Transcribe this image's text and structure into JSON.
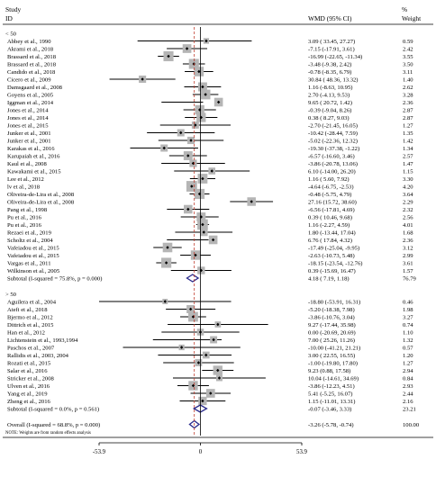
{
  "chart_data": {
    "type": "forest",
    "title": "",
    "xlabel": "",
    "ylabel": "",
    "xlim": [
      -53.9,
      53.9
    ],
    "ticks": [
      "-53.9",
      "0",
      "53.9"
    ],
    "tick_values": [
      -53.9,
      0,
      53.9
    ],
    "header": {
      "study_line1": "Study",
      "study_line2": "ID",
      "effect": "WMD (95% CI)",
      "weight_line1": "%",
      "weight_line2": "Weight"
    },
    "groups": [
      {
        "label": "< 50",
        "studies": [
          {
            "study": "Abbey et al., 1990",
            "wmd": 3.09,
            "lo": -33.45,
            "hi": 27.27,
            "ci": "3.09 ( 33.45, 27.27)",
            "weight": "0.59"
          },
          {
            "study": "Akrami et al., 2018",
            "wmd": -7.15,
            "lo": -17.91,
            "hi": 3.61,
            "ci": "-7.15 (-17.91, 3.61)",
            "weight": "2.42"
          },
          {
            "study": "Brassard et al., 2018",
            "wmd": -16.99,
            "lo": -22.65,
            "hi": -11.34,
            "ci": "-16.99 (-22.65, -11.34)",
            "weight": "3.55"
          },
          {
            "study": "Brassard et al., 2018",
            "wmd": -3.48,
            "lo": -9.38,
            "hi": 2.42,
            "ci": "-3.48 (-9.38, 2.42)",
            "weight": "3.50"
          },
          {
            "study": "Candido et al., 2018",
            "wmd": -0.78,
            "lo": -8.35,
            "hi": 6.79,
            "ci": "-0.78 (-8.35, 6.79)",
            "weight": "3.11"
          },
          {
            "study": "Cicero et al., 2009",
            "wmd": -30.84,
            "lo": -48.36,
            "hi": -13.32,
            "ci": "30.84 ( 48.36, 13.32)",
            "weight": "1.40"
          },
          {
            "study": "Damsgaard et al., 2008",
            "wmd": 1.16,
            "lo": -8.63,
            "hi": 10.95,
            "ci": "1.16 (-8.63, 10.95)",
            "weight": "2.62"
          },
          {
            "study": "Goyens et al., 2005",
            "wmd": 2.7,
            "lo": -4.13,
            "hi": 9.53,
            "ci": "2.70 (-4.13, 9.53)",
            "weight": "3.28"
          },
          {
            "study": "Iggman et al., 2014",
            "wmd": 9.65,
            "lo": -20.72,
            "hi": 1.42,
            "ci": "9.65 ( 20.72, 1.42)",
            "weight": "2.36"
          },
          {
            "study": "Jones et al., 2014",
            "wmd": -0.39,
            "lo": -9.04,
            "hi": 8.26,
            "ci": "-0.39 (-9.04, 8.26)",
            "weight": "2.87"
          },
          {
            "study": "Jones et al., 2014",
            "wmd": 0.38,
            "lo": -8.27,
            "hi": 9.03,
            "ci": "0.38 ( 8.27, 9.03)",
            "weight": "2.87"
          },
          {
            "study": "Jones et al., 2015",
            "wmd": -2.7,
            "lo": -21.45,
            "hi": 16.05,
            "ci": "-2.70 (-21.45, 16.05)",
            "weight": "1.27"
          },
          {
            "study": "Junker et al., 2001",
            "wmd": -10.42,
            "lo": -28.44,
            "hi": 7.59,
            "ci": "-10.42 (-28.44, 7.59)",
            "weight": "1.35"
          },
          {
            "study": "Junker et al., 2001",
            "wmd": -5.02,
            "lo": -22.36,
            "hi": 12.32,
            "ci": "-5.02 (-22.36, 12.32)",
            "weight": "1.42"
          },
          {
            "study": "Karakas et al., 2016",
            "wmd": -19.3,
            "lo": -37.38,
            "hi": -1.22,
            "ci": "-19.30 (-37.38, -1.22)",
            "weight": "1.34"
          },
          {
            "study": "Karupaiah et al., 2016",
            "wmd": -6.57,
            "lo": -16.6,
            "hi": 3.46,
            "ci": "-6.57 (-16.60, 3.46)",
            "weight": "2.57"
          },
          {
            "study": "Kaul et al., 2008",
            "wmd": -3.86,
            "lo": -20.78,
            "hi": 13.06,
            "ci": "-3.86 (-20.78, 13.06)",
            "weight": "1.47"
          },
          {
            "study": "Kawakami et al., 2015",
            "wmd": 6.1,
            "lo": -14.0,
            "hi": 26.2,
            "ci": "6.10 (-14.00, 26.20)",
            "weight": "1.15"
          },
          {
            "study": "Lee et al., 2012",
            "wmd": 1.16,
            "lo": -5.6,
            "hi": 7.92,
            "ci": "1.16 ( 5.60, 7.92)",
            "weight": "3.30"
          },
          {
            "study": "lv et al., 2018",
            "wmd": -4.64,
            "lo": -6.75,
            "hi": -2.53,
            "ci": "-4.64 (-6.75, -2.53)",
            "weight": "4.20"
          },
          {
            "study": "Oliveira-de-Lira et al., 2008",
            "wmd": -0.48,
            "lo": -5.75,
            "hi": 4.79,
            "ci": "-0.48 (-5.75, 4.79)",
            "weight": "3.64"
          },
          {
            "study": "Oliveira-de-Lira et al., 2008",
            "wmd": 27.16,
            "lo": 15.72,
            "hi": 38.6,
            "ci": "27.16 (15.72, 38.60)",
            "weight": "2.29"
          },
          {
            "study": "Pang et al., 1998",
            "wmd": -6.56,
            "lo": -17.81,
            "hi": 4.69,
            "ci": "-6.56 (-17.81, 4.69)",
            "weight": "2.32"
          },
          {
            "study": "Pu et al., 2016",
            "wmd": 0.39,
            "lo": -10.46,
            "hi": 9.68,
            "ci": "0.39 ( 10.46, 9.68)",
            "weight": "2.56"
          },
          {
            "study": "Pu et al., 2016",
            "wmd": 1.16,
            "lo": -2.27,
            "hi": 4.59,
            "ci": "1.16 (-2.27, 4.59)",
            "weight": "4.01"
          },
          {
            "study": "Rezaei et al., 2019",
            "wmd": 1.8,
            "lo": -13.44,
            "hi": 17.04,
            "ci": "1.80 (-13.44, 17.04)",
            "weight": "1.68"
          },
          {
            "study": "Scholtz et al., 2004",
            "wmd": 6.76,
            "lo": -17.84,
            "hi": 4.32,
            "ci": "6.76 ( 17.84, 4.32)",
            "weight": "2.36"
          },
          {
            "study": "Vafeiadou et al., 2015",
            "wmd": -17.49,
            "lo": -25.04,
            "hi": -9.95,
            "ci": "-17.49 (-25.04, -9.95)",
            "weight": "3.12"
          },
          {
            "study": "Vafeiadou et al., 2015",
            "wmd": -2.63,
            "lo": -10.73,
            "hi": 5.48,
            "ci": "-2.63 (-10.73, 5.48)",
            "weight": "2.99"
          },
          {
            "study": "Vargas et al., 2011",
            "wmd": -18.15,
            "lo": -23.54,
            "hi": -12.76,
            "ci": "-18.15 (-23.54, -12.76)",
            "weight": "3.61"
          },
          {
            "study": "Wilkinson et al., 2005",
            "wmd": 0.39,
            "lo": -15.69,
            "hi": 16.47,
            "ci": "0.39 (-15.69, 16.47)",
            "weight": "1.57"
          }
        ],
        "subtotal": {
          "label": "Subtotal  (I-squared = 75.8%, p = 0.000)",
          "wmd": -4.18,
          "lo": -7.19,
          "hi": -1.18,
          "ci": "4.18 ( 7.19, 1.18)",
          "weight": "76.79"
        }
      },
      {
        "label": "> 50",
        "studies": [
          {
            "study": "Aguilera et al., 2004",
            "wmd": -18.8,
            "lo": -53.91,
            "hi": 16.31,
            "ci": "-18.80 (-53.91, 16.31)",
            "weight": "0.46"
          },
          {
            "study": "Atefi et al., 2018",
            "wmd": -5.2,
            "lo": -18.38,
            "hi": 7.98,
            "ci": "-5.20 (-18.38, 7.98)",
            "weight": "1.98"
          },
          {
            "study": "Bjermo et al., 2012",
            "wmd": -3.86,
            "lo": -10.76,
            "hi": 3.04,
            "ci": "-3.86 (-10.76, 3.04)",
            "weight": "3.27"
          },
          {
            "study": "Dittrich et al., 2015",
            "wmd": 9.27,
            "lo": -17.44,
            "hi": 35.98,
            "ci": "9.27 (-17.44, 35.98)",
            "weight": "0.74"
          },
          {
            "study": "Han et al., 2012",
            "wmd": 0.0,
            "lo": -20.69,
            "hi": 20.69,
            "ci": "0.00 (-20.69, 20.69)",
            "weight": "1.10"
          },
          {
            "study": "Lichtenstein et al., 1993,1994",
            "wmd": 7.0,
            "lo": -25.26,
            "hi": 11.26,
            "ci": "7.00 ( 25.26, 11.26)",
            "weight": "1.32"
          },
          {
            "study": "Paschos et al., 2007",
            "wmd": -10.0,
            "lo": -41.21,
            "hi": 21.21,
            "ci": "-10.00 (-41.21, 21.21)",
            "weight": "0.57"
          },
          {
            "study": "Rallidis et al., 2003, 2004",
            "wmd": 3.0,
            "lo": -22.55,
            "hi": 16.55,
            "ci": "3.00 ( 22.55, 16.55)",
            "weight": "1.20"
          },
          {
            "study": "Rozati et al., 2015",
            "wmd": -1.0,
            "lo": -19.8,
            "hi": 17.8,
            "ci": "-1.00 (-19.80, 17.80)",
            "weight": "1.27"
          },
          {
            "study": "Salar et al., 2016",
            "wmd": 9.23,
            "lo": 0.88,
            "hi": 17.58,
            "ci": "9.23 (0.88, 17.58)",
            "weight": "2.94"
          },
          {
            "study": "Stricker et al., 2008",
            "wmd": 10.04,
            "lo": -14.61,
            "hi": 34.69,
            "ci": "10.04 (-14.61, 34.69)",
            "weight": "0.84"
          },
          {
            "study": "Ulven et al., 2016",
            "wmd": -3.86,
            "lo": -12.23,
            "hi": 4.51,
            "ci": "-3.86 (-12.23, 4.51)",
            "weight": "2.93"
          },
          {
            "study": "Yang et al., 2019",
            "wmd": 5.41,
            "lo": -5.25,
            "hi": 16.07,
            "ci": "5.41 (-5.25, 16.07)",
            "weight": "2.44"
          },
          {
            "study": "Zheng et al., 2016",
            "wmd": 1.15,
            "lo": -11.01,
            "hi": 13.31,
            "ci": "1.15 (-11.01, 13.31)",
            "weight": "2.16"
          }
        ],
        "subtotal": {
          "label": "Subtotal  (I-squared = 0.0%, p = 0.561)",
          "wmd": -0.07,
          "lo": -3.46,
          "hi": 3.33,
          "ci": "-0.07 (-3.46, 3.33)",
          "weight": "23.21"
        }
      }
    ],
    "overall": {
      "label": "Overall  (I-squared = 68.8%, p = 0.000)",
      "wmd": -3.26,
      "lo": -5.78,
      "hi": -0.74,
      "ci": "-3.26 (-5.78, -0.74)",
      "weight": "100.00"
    },
    "note": "NOTE: Weights are from random effects analysis",
    "colors": {
      "box": "#b5b5b5",
      "diamond": "#2a2a8c",
      "line": "#000000",
      "ref_dash": "#c0392b"
    }
  }
}
